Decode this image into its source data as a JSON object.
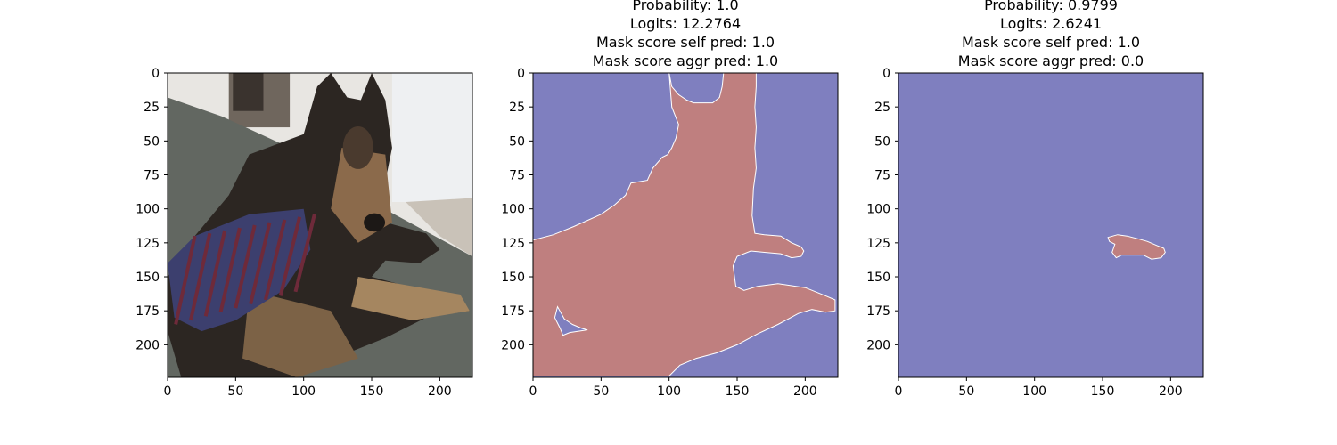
{
  "colors": {
    "background_blue": "#7f7fbf",
    "mask_red": "#bf7f7f",
    "photo_wall": "#e8e6e2",
    "photo_carpet": "#626761",
    "photo_dog_dark": "#2c2622",
    "photo_dog_tan": "#8b6a4b",
    "photo_sweater_red": "#6e2a3a",
    "photo_sweater_blue": "#3c3f6e"
  },
  "panels": [
    {
      "id": "input-image",
      "title_lines": [],
      "content": "photo",
      "content_description": ""
    },
    {
      "id": "mask-1",
      "title_lines": [
        "Probability: 1.0",
        "Logits: 12.2764",
        "Mask score self pred: 1.0",
        "Mask score aggr pred: 1.0"
      ],
      "content": "mask",
      "mask": "dog"
    },
    {
      "id": "mask-2",
      "title_lines": [
        "Probability: 0.9799",
        "Logits: 2.6241",
        "Mask score self pred: 1.0",
        "Mask score aggr pred: 0.0"
      ],
      "content": "mask",
      "mask": "paw"
    }
  ],
  "chart_data": [
    {
      "type": "heatmap",
      "title": "",
      "xlabel": "",
      "ylabel": "",
      "xlim": [
        0,
        224
      ],
      "ylim": [
        224,
        0
      ],
      "x_ticks": [
        "0",
        "50",
        "100",
        "150",
        "200"
      ],
      "y_ticks": [
        "0",
        "25",
        "50",
        "75",
        "100",
        "125",
        "150",
        "175",
        "200"
      ],
      "content": "input image (dog in sweater)"
    },
    {
      "type": "heatmap",
      "title": "Probability: 1.0\nLogits: 12.2764\nMask score self pred: 1.0\nMask score aggr pred: 1.0",
      "xlabel": "",
      "ylabel": "",
      "xlim": [
        0,
        224
      ],
      "ylim": [
        224,
        0
      ],
      "x_ticks": [
        "0",
        "50",
        "100",
        "150",
        "200"
      ],
      "y_ticks": [
        "0",
        "25",
        "50",
        "75",
        "100",
        "125",
        "150",
        "175",
        "200"
      ],
      "mask_outline_data_units": [
        [
          100,
          0
        ],
        [
          102,
          10
        ],
        [
          107,
          16
        ],
        [
          113,
          20
        ],
        [
          118,
          22
        ],
        [
          132,
          22
        ],
        [
          137,
          18
        ],
        [
          139,
          10
        ],
        [
          140,
          0
        ],
        [
          164,
          0
        ],
        [
          164,
          10
        ],
        [
          163,
          25
        ],
        [
          164,
          40
        ],
        [
          163,
          55
        ],
        [
          164,
          70
        ],
        [
          162,
          85
        ],
        [
          161,
          105
        ],
        [
          163,
          118
        ],
        [
          170,
          119
        ],
        [
          182,
          120
        ],
        [
          190,
          125
        ],
        [
          197,
          128
        ],
        [
          199,
          131
        ],
        [
          197,
          135
        ],
        [
          190,
          136
        ],
        [
          182,
          133
        ],
        [
          170,
          132
        ],
        [
          160,
          131
        ],
        [
          150,
          135
        ],
        [
          147,
          142
        ],
        [
          149,
          157
        ],
        [
          155,
          160
        ],
        [
          165,
          157
        ],
        [
          180,
          155
        ],
        [
          200,
          158
        ],
        [
          215,
          164
        ],
        [
          222,
          167
        ],
        [
          222,
          175
        ],
        [
          215,
          176
        ],
        [
          205,
          174
        ],
        [
          195,
          177
        ],
        [
          180,
          185
        ],
        [
          165,
          192
        ],
        [
          150,
          200
        ],
        [
          135,
          206
        ],
        [
          120,
          210
        ],
        [
          108,
          215
        ],
        [
          100,
          223
        ],
        [
          0,
          223
        ],
        [
          0,
          123
        ],
        [
          15,
          119
        ],
        [
          30,
          113
        ],
        [
          50,
          104
        ],
        [
          60,
          97
        ],
        [
          68,
          90
        ],
        [
          72,
          81
        ],
        [
          84,
          79
        ],
        [
          88,
          70
        ],
        [
          95,
          62
        ],
        [
          99,
          60
        ],
        [
          102,
          55
        ],
        [
          105,
          48
        ],
        [
          107,
          38
        ],
        [
          102,
          25
        ]
      ],
      "mask_hole_data_units": [
        [
          18,
          172
        ],
        [
          23,
          181
        ],
        [
          29,
          185
        ],
        [
          36,
          188
        ],
        [
          40,
          189
        ],
        [
          27,
          191
        ],
        [
          22,
          193
        ],
        [
          20,
          188
        ],
        [
          16,
          180
        ]
      ]
    },
    {
      "type": "heatmap",
      "title": "Probability: 0.9799\nLogits: 2.6241\nMask score self pred: 1.0\nMask score aggr pred: 0.0",
      "xlabel": "",
      "ylabel": "",
      "xlim": [
        0,
        224
      ],
      "ylim": [
        224,
        0
      ],
      "x_ticks": [
        "0",
        "50",
        "100",
        "150",
        "200"
      ],
      "y_ticks": [
        "0",
        "25",
        "50",
        "75",
        "100",
        "125",
        "150",
        "175",
        "200"
      ],
      "mask_outline_data_units": [
        [
          154,
          121
        ],
        [
          161,
          119
        ],
        [
          168,
          120
        ],
        [
          176,
          122
        ],
        [
          183,
          124
        ],
        [
          190,
          127
        ],
        [
          195,
          129
        ],
        [
          196,
          132
        ],
        [
          193,
          136
        ],
        [
          186,
          137
        ],
        [
          180,
          134
        ],
        [
          172,
          134
        ],
        [
          164,
          134
        ],
        [
          160,
          136
        ],
        [
          157,
          132
        ],
        [
          159,
          126
        ],
        [
          155,
          124
        ]
      ]
    }
  ]
}
